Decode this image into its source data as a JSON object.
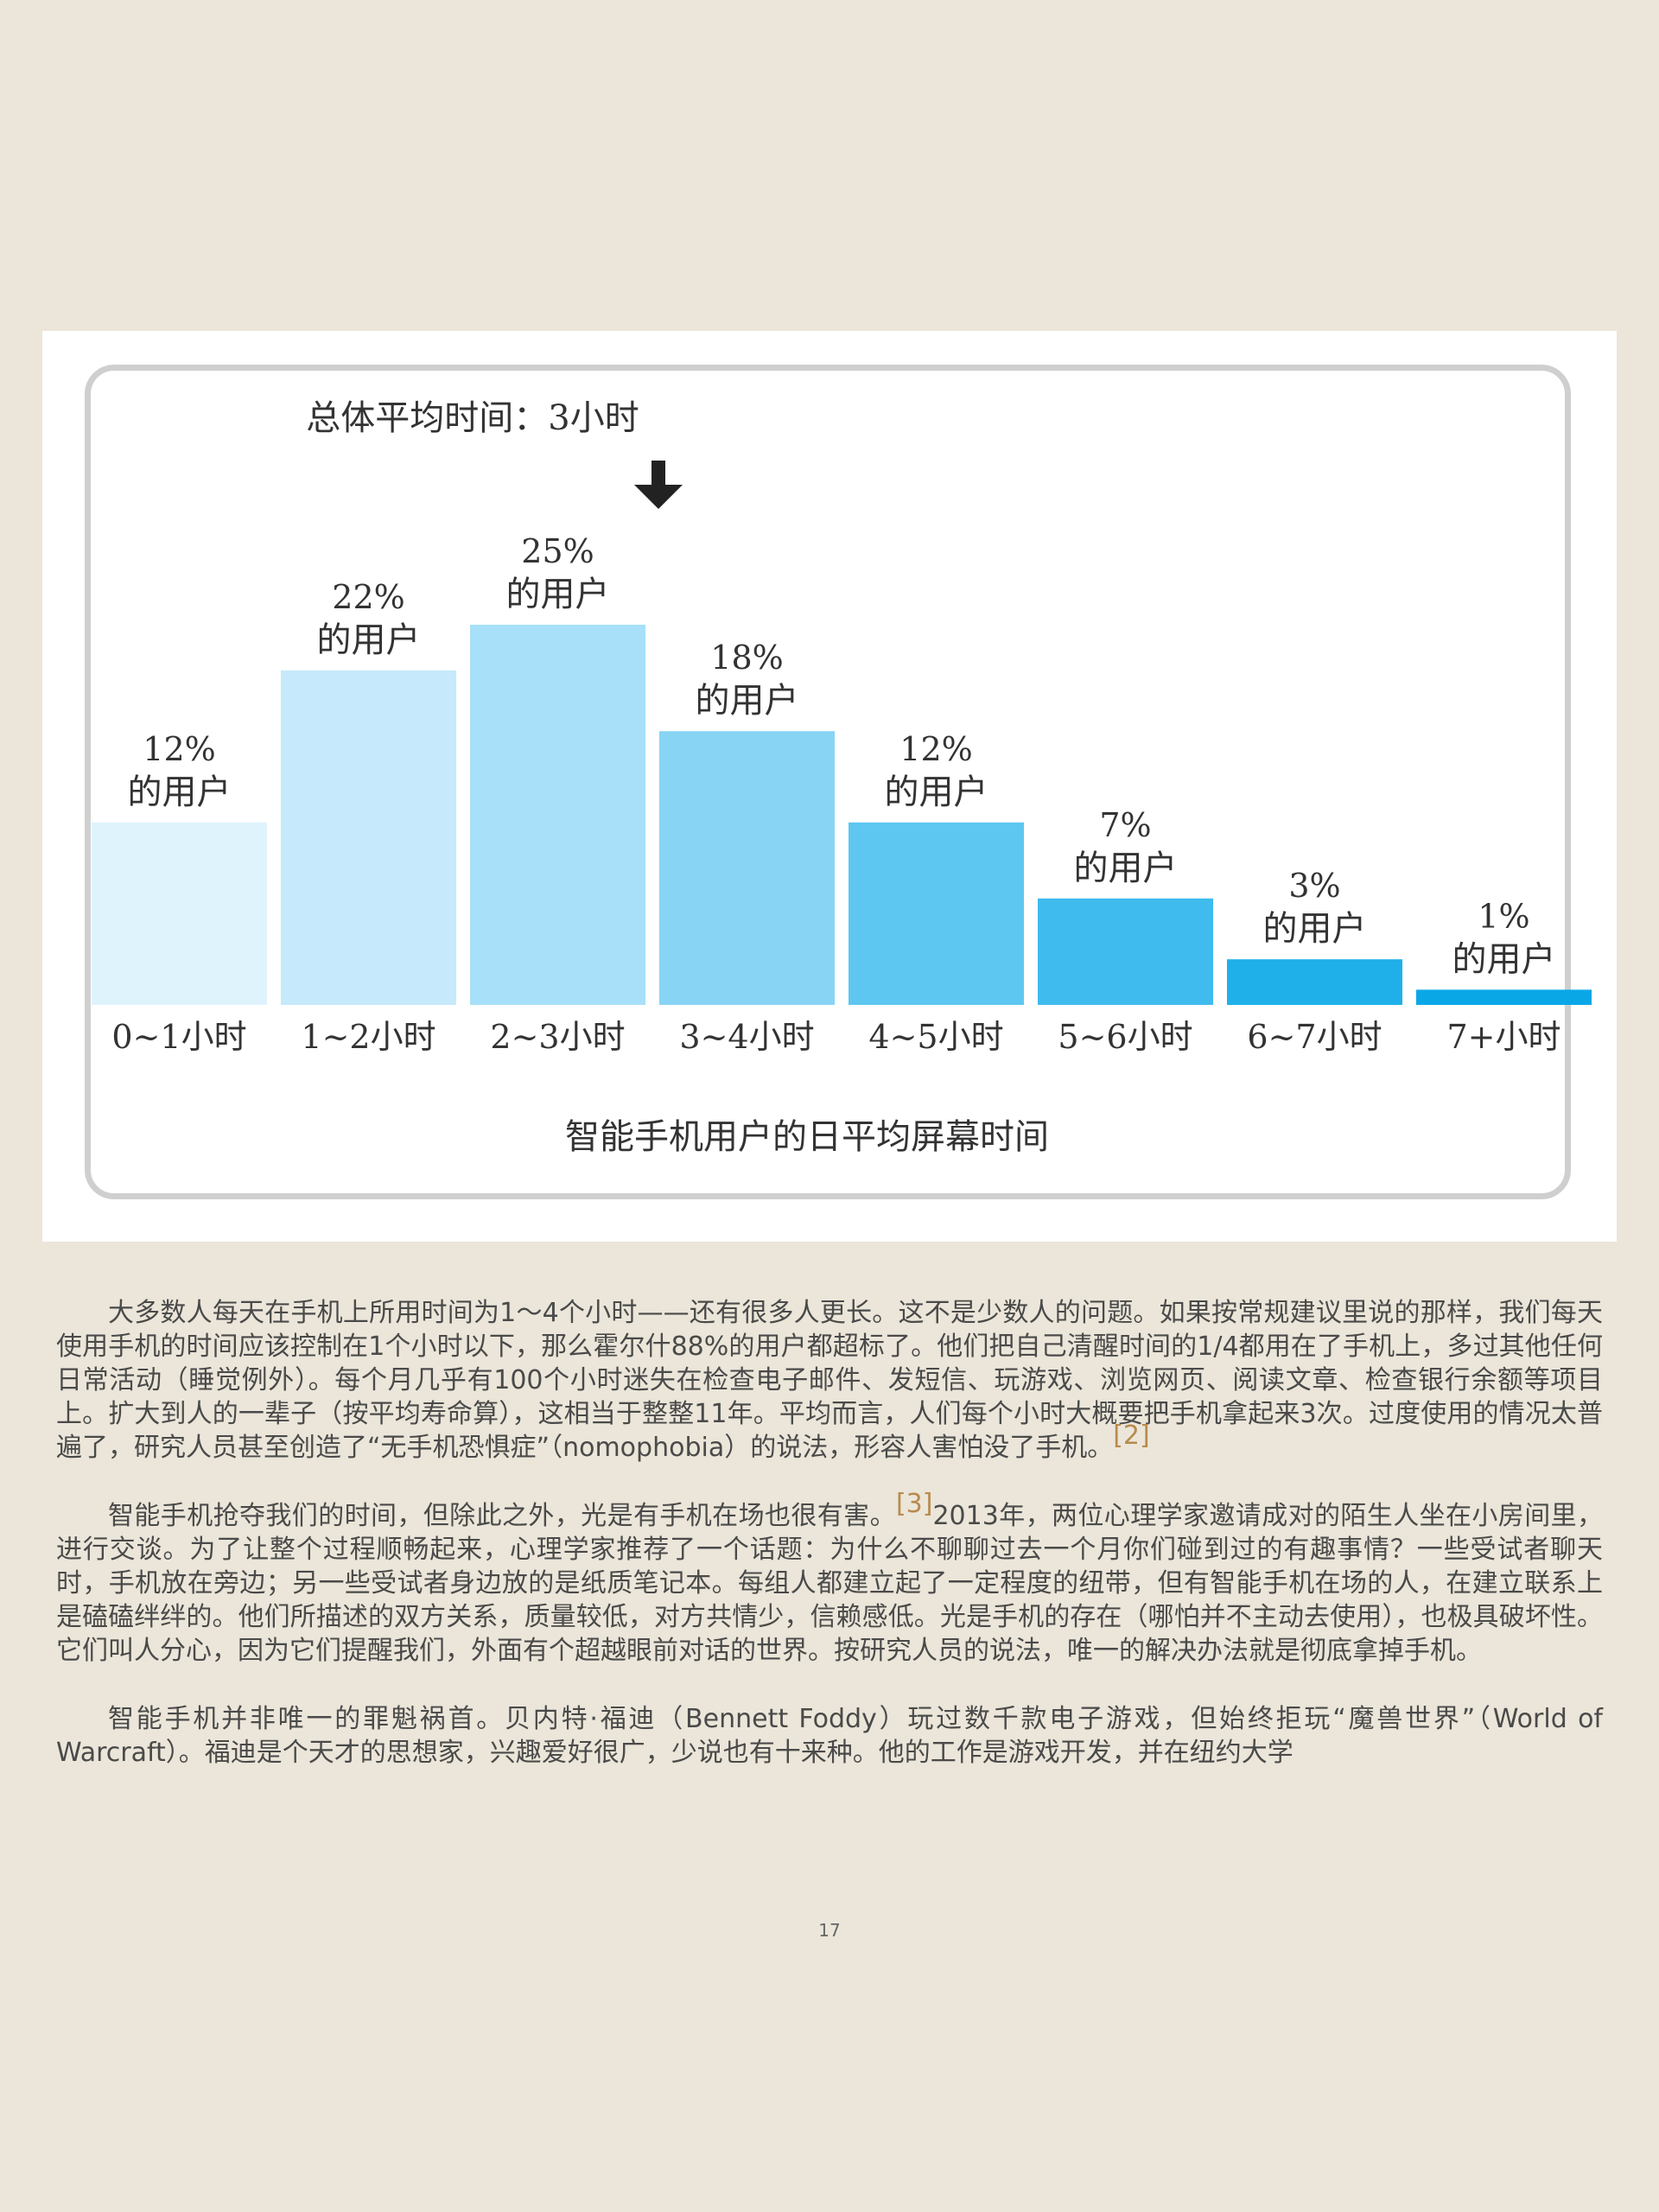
{
  "chart_data": {
    "type": "bar",
    "title": "智能手机用户的日平均屏幕时间",
    "annotation": "总体平均时间：3小时",
    "categories": [
      "0~1小时",
      "1~2小时",
      "2~3小时",
      "3~4小时",
      "4~5小时",
      "5~6小时",
      "6~7小时",
      "7+小时"
    ],
    "values": [
      12,
      22,
      25,
      18,
      12,
      7,
      3,
      1
    ],
    "value_labels": [
      "12%",
      "22%",
      "25%",
      "18%",
      "12%",
      "7%",
      "3%",
      "1%"
    ],
    "label_suffix": "的用户",
    "unit": "%",
    "ylim": [
      0,
      25
    ],
    "colors": [
      "#dff3fc",
      "#c6eafb",
      "#a7e0f8",
      "#88d4f4",
      "#5ec7f1",
      "#3fbbee",
      "#1fb0ea",
      "#0aa7e7"
    ]
  },
  "article": {
    "p1": "大多数人每天在手机上所用时间为1～4个小时——还有很多人更长。这不是少数人的问题。如果按常规建议里说的那样，我们每天使用手机的时间应该控制在1个小时以下，那么霍尔什88%的用户都超标了。他们把自己清醒时间的1/4都用在了手机上，多过其他任何日常活动（睡觉例外）。每个月几乎有100个小时迷失在检查电子邮件、发短信、玩游戏、浏览网页、阅读文章、检查银行余额等项目上。扩大到人的一辈子（按平均寿命算），这相当于整整11年。平均而言，人们每个小时大概要把手机拿起来3次。过度使用的情况太普遍了，研究人员甚至创造了“无手机恐惧症”（nomophobia）的说法，形容人害怕没了手机。",
    "p1_ref": "[2]",
    "p2_a": "智能手机抢夺我们的时间，但除此之外，光是有手机在场也很有害。",
    "p2_ref": "[3]",
    "p2_b": "2013年，两位心理学家邀请成对的陌生人坐在小房间里，进行交谈。为了让整个过程顺畅起来，心理学家推荐了一个话题：为什么不聊聊过去一个月你们碰到过的有趣事情？一些受试者聊天时，手机放在旁边；另一些受试者身边放的是纸质笔记本。每组人都建立起了一定程度的纽带，但有智能手机在场的人，在建立联系上是磕磕绊绊的。他们所描述的双方关系，质量较低，对方共情少，信赖感低。光是手机的存在（哪怕并不主动去使用），也极具破坏性。它们叫人分心，因为它们提醒我们，外面有个超越眼前对话的世界。按研究人员的说法，唯一的解决办法就是彻底拿掉手机。",
    "p3": "智能手机并非唯一的罪魁祸首。贝内特·福迪（Bennett Foddy）玩过数千款电子游戏，但始终拒玩“魔兽世界”（World of Warcraft）。福迪是个天才的思想家，兴趣爱好很广，少说也有十来种。他的工作是游戏开发，并在纽约大学"
  },
  "page_number": "17"
}
